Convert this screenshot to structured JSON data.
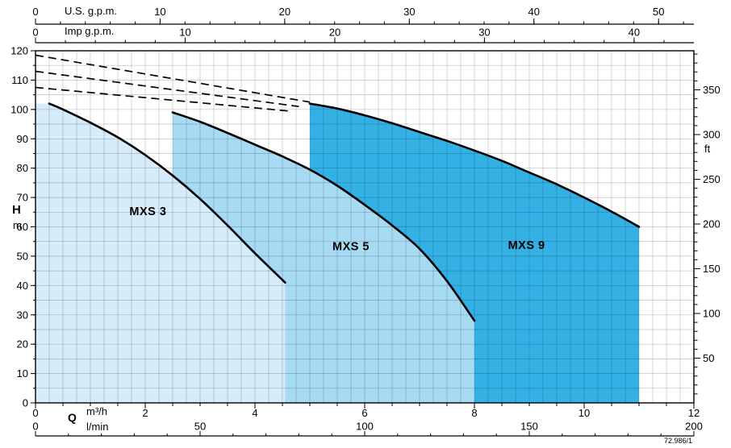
{
  "meta": {
    "ref": "72.986/1"
  },
  "chart_data": {
    "type": "area",
    "title": "Pump coverage chart: head H versus flow Q for MXS 3, MXS 5 and MXS 9",
    "q_max_m3h": 12,
    "h_max_m": 120,
    "grid": {
      "q_step": 0.25,
      "h_step": 5
    },
    "axes": {
      "us_gpm": {
        "label": "U.S. g.p.m.",
        "per_m3h": 4.4029,
        "majors": [
          0,
          10,
          20,
          30,
          40,
          50
        ],
        "minor_step": 2
      },
      "imp_gpm": {
        "label": "Imp g.p.m.",
        "per_m3h": 3.6662,
        "majors": [
          0,
          10,
          20,
          30,
          40
        ],
        "minor_step": 2
      },
      "m3h": {
        "label": "m³/h",
        "q_label": "Q",
        "majors": [
          0,
          2,
          4,
          6,
          8,
          10,
          12
        ],
        "minor_step": 0.5
      },
      "lmin": {
        "label": "l/min",
        "per_m3h": 16.667,
        "majors": [
          0,
          50,
          100,
          150,
          200
        ],
        "minor_step": 10
      },
      "head_m": {
        "label": "H",
        "unit": "m",
        "majors": [
          0,
          10,
          20,
          30,
          40,
          50,
          60,
          70,
          80,
          90,
          100,
          110,
          120
        ],
        "minor_step": 5
      },
      "head_ft": {
        "label": "ft",
        "per_m": 3.2808,
        "majors": [
          50,
          100,
          150,
          200,
          250,
          300,
          350
        ],
        "minor_step": 10
      }
    },
    "series": [
      {
        "name": "MXS 3",
        "fill": "#d7ecfa",
        "q_left": 0,
        "dashed": [
          [
            0,
            107.5
          ],
          [
            4.6,
            99.5
          ]
        ],
        "curve": [
          [
            0.25,
            102
          ],
          [
            0.5,
            100
          ],
          [
            1,
            95.5
          ],
          [
            1.5,
            90.5
          ],
          [
            2,
            84.5
          ],
          [
            2.5,
            77.5
          ],
          [
            3,
            69.5
          ],
          [
            3.5,
            60.5
          ],
          [
            4,
            51
          ],
          [
            4.55,
            41
          ]
        ],
        "label_q": 2.05,
        "label_h": 64
      },
      {
        "name": "MXS 5",
        "fill": "#a6dbf3",
        "q_left": 2.5,
        "dashed": [
          [
            0,
            113
          ],
          [
            4.8,
            101
          ]
        ],
        "curve": [
          [
            2.5,
            99
          ],
          [
            3,
            95.8
          ],
          [
            3.5,
            92
          ],
          [
            4,
            88
          ],
          [
            4.5,
            84
          ],
          [
            5,
            79.5
          ],
          [
            5.5,
            74
          ],
          [
            6,
            67.5
          ],
          [
            6.5,
            60.5
          ],
          [
            7,
            52.5
          ],
          [
            7.5,
            41.5
          ],
          [
            8,
            28
          ]
        ],
        "label_q": 5.75,
        "label_h": 52
      },
      {
        "name": "MXS 9",
        "fill": "#33b1e4",
        "q_left": 5,
        "dashed": [
          [
            0,
            118.5
          ],
          [
            5,
            102.5
          ]
        ],
        "curve": [
          [
            5,
            102
          ],
          [
            5.5,
            100.3
          ],
          [
            6,
            98
          ],
          [
            6.5,
            95.3
          ],
          [
            7,
            92.3
          ],
          [
            7.5,
            89.3
          ],
          [
            8,
            86
          ],
          [
            8.5,
            82.5
          ],
          [
            9,
            78.5
          ],
          [
            9.5,
            74.5
          ],
          [
            10,
            70
          ],
          [
            10.5,
            65.2
          ],
          [
            11,
            60
          ]
        ],
        "label_q": 8.95,
        "label_h": 52.5
      }
    ]
  }
}
